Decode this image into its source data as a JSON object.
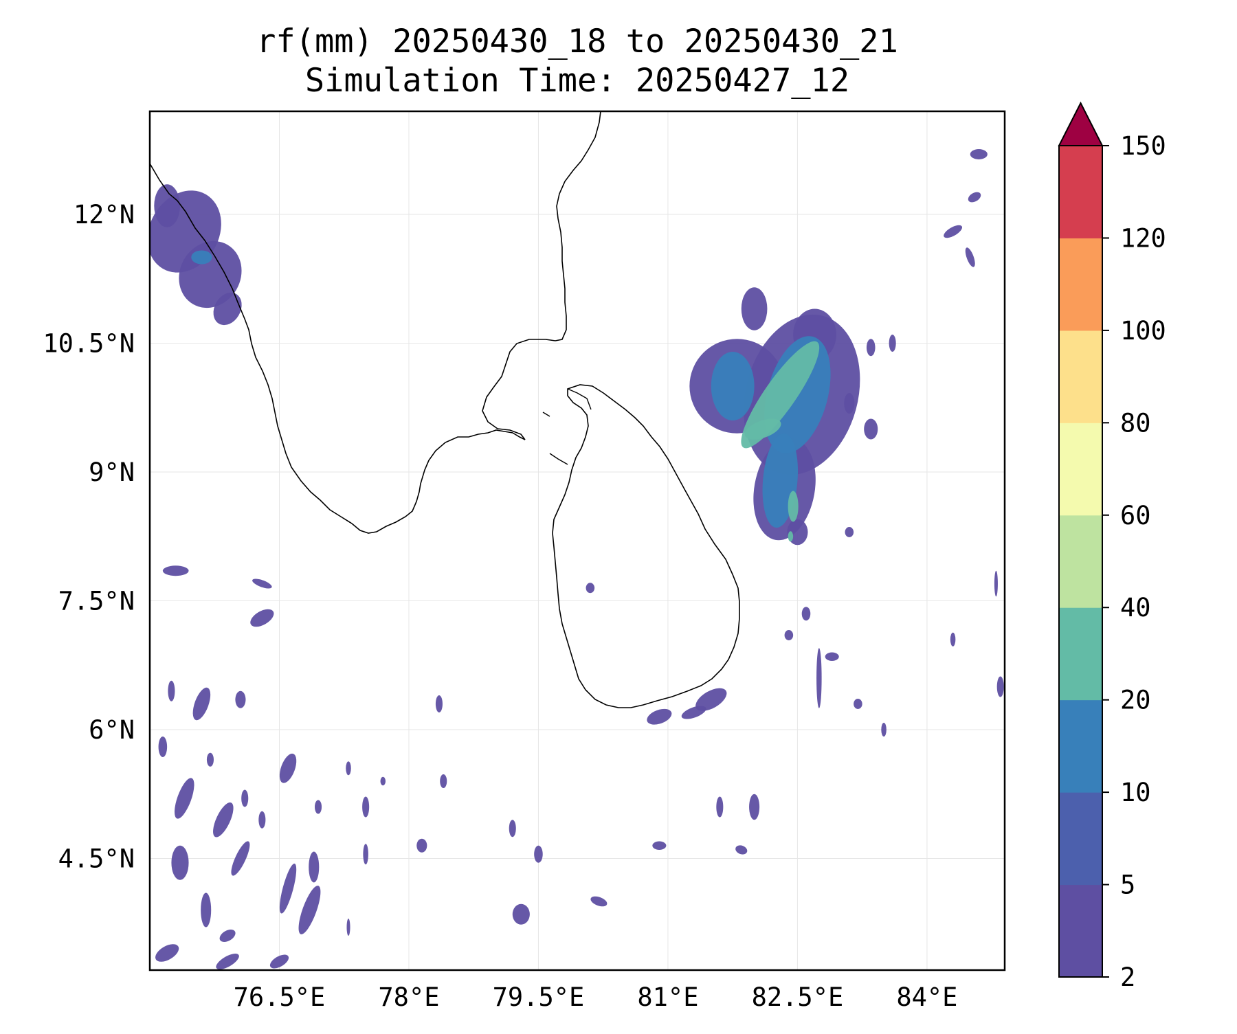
{
  "title": {
    "line1": "rf(mm) 20250430_18 to 20250430_21",
    "line2": "Simulation Time: 20250427_12"
  },
  "map": {
    "lon_range": [
      75.0,
      84.9
    ],
    "lat_range": [
      3.2,
      13.2
    ],
    "lon_ticks": [
      {
        "value": 76.5,
        "label": "76.5°E"
      },
      {
        "value": 78.0,
        "label": "78°E"
      },
      {
        "value": 79.5,
        "label": "79.5°E"
      },
      {
        "value": 81.0,
        "label": "81°E"
      },
      {
        "value": 82.5,
        "label": "82.5°E"
      },
      {
        "value": 84.0,
        "label": "84°E"
      }
    ],
    "lat_ticks": [
      {
        "value": 12.0,
        "label": "12°N"
      },
      {
        "value": 10.5,
        "label": "10.5°N"
      },
      {
        "value": 9.0,
        "label": "9°N"
      },
      {
        "value": 7.5,
        "label": "7.5°N"
      },
      {
        "value": 6.0,
        "label": "6°N"
      },
      {
        "value": 4.5,
        "label": "4.5°N"
      }
    ],
    "gridlines": true
  },
  "colorbar": {
    "extend": "max",
    "extend_color": "#9e0142",
    "bins": [
      {
        "min": 2,
        "max": 5,
        "color": "#5e4fa2"
      },
      {
        "min": 5,
        "max": 10,
        "color": "#4c60ad"
      },
      {
        "min": 10,
        "max": 20,
        "color": "#3880ba"
      },
      {
        "min": 20,
        "max": 40,
        "color": "#63bba6"
      },
      {
        "min": 40,
        "max": 60,
        "color": "#bee3a0"
      },
      {
        "min": 60,
        "max": 80,
        "color": "#f4faae"
      },
      {
        "min": 80,
        "max": 100,
        "color": "#fde08b"
      },
      {
        "min": 100,
        "max": 120,
        "color": "#fa9c59"
      },
      {
        "min": 120,
        "max": 150,
        "color": "#d53e4f"
      }
    ],
    "tick_labels": [
      "2",
      "5",
      "10",
      "20",
      "40",
      "60",
      "80",
      "100",
      "120",
      "150"
    ]
  },
  "rain_cells": [
    {
      "lon": 82.3,
      "lat": 9.9,
      "level": 20,
      "rx": 0.18,
      "ry": 0.75,
      "rot": 35
    },
    {
      "lon": 82.1,
      "lat": 9.5,
      "level": 20,
      "rx": 0.22,
      "ry": 0.1,
      "rot": -20
    },
    {
      "lon": 82.45,
      "lat": 8.6,
      "level": 20,
      "rx": 0.06,
      "ry": 0.18,
      "rot": 0
    },
    {
      "lon": 82.42,
      "lat": 8.25,
      "level": 20,
      "rx": 0.03,
      "ry": 0.06,
      "rot": 0
    },
    {
      "lon": 82.5,
      "lat": 9.9,
      "level": 10,
      "rx": 0.35,
      "ry": 0.7,
      "rot": 15
    },
    {
      "lon": 82.3,
      "lat": 8.9,
      "level": 10,
      "rx": 0.2,
      "ry": 0.55,
      "rot": 5
    },
    {
      "lon": 81.75,
      "lat": 10.0,
      "level": 10,
      "rx": 0.25,
      "ry": 0.4,
      "rot": 0
    },
    {
      "lon": 82.55,
      "lat": 9.9,
      "level": 2,
      "rx": 0.65,
      "ry": 0.95,
      "rot": 15
    },
    {
      "lon": 81.8,
      "lat": 10.0,
      "level": 2,
      "rx": 0.55,
      "ry": 0.55,
      "rot": 0
    },
    {
      "lon": 82.35,
      "lat": 8.8,
      "level": 2,
      "rx": 0.35,
      "ry": 0.6,
      "rot": 10
    },
    {
      "lon": 82.0,
      "lat": 10.9,
      "level": 2,
      "rx": 0.15,
      "ry": 0.25,
      "rot": 0
    },
    {
      "lon": 82.7,
      "lat": 10.6,
      "level": 2,
      "rx": 0.25,
      "ry": 0.3,
      "rot": 0
    },
    {
      "lon": 82.5,
      "lat": 8.3,
      "level": 2,
      "rx": 0.12,
      "ry": 0.15,
      "rot": 0
    },
    {
      "lon": 75.4,
      "lat": 11.8,
      "level": 2,
      "rx": 0.4,
      "ry": 0.5,
      "rot": 30
    },
    {
      "lon": 75.7,
      "lat": 11.3,
      "level": 2,
      "rx": 0.35,
      "ry": 0.4,
      "rot": 30
    },
    {
      "lon": 75.2,
      "lat": 12.1,
      "level": 2,
      "rx": 0.15,
      "ry": 0.25,
      "rot": 0
    },
    {
      "lon": 75.9,
      "lat": 10.9,
      "level": 2,
      "rx": 0.15,
      "ry": 0.2,
      "rot": 30
    },
    {
      "lon": 75.6,
      "lat": 11.5,
      "level": 10,
      "rx": 0.12,
      "ry": 0.08,
      "rot": 0
    },
    {
      "lon": 80.9,
      "lat": 6.15,
      "level": 2,
      "rx": 0.15,
      "ry": 0.08,
      "rot": -20
    },
    {
      "lon": 81.5,
      "lat": 6.35,
      "level": 2,
      "rx": 0.2,
      "ry": 0.1,
      "rot": -30
    },
    {
      "lon": 81.3,
      "lat": 6.2,
      "level": 2,
      "rx": 0.15,
      "ry": 0.06,
      "rot": -20
    },
    {
      "lon": 84.6,
      "lat": 12.7,
      "level": 2,
      "rx": 0.1,
      "ry": 0.06,
      "rot": 0
    },
    {
      "lon": 84.55,
      "lat": 12.2,
      "level": 2,
      "rx": 0.08,
      "ry": 0.05,
      "rot": -30
    },
    {
      "lon": 84.3,
      "lat": 11.8,
      "level": 2,
      "rx": 0.12,
      "ry": 0.05,
      "rot": -30
    },
    {
      "lon": 84.5,
      "lat": 11.5,
      "level": 2,
      "rx": 0.04,
      "ry": 0.12,
      "rot": -20
    },
    {
      "lon": 83.35,
      "lat": 10.45,
      "level": 2,
      "rx": 0.05,
      "ry": 0.1,
      "rot": 0
    },
    {
      "lon": 83.6,
      "lat": 10.5,
      "level": 2,
      "rx": 0.04,
      "ry": 0.1,
      "rot": 0
    },
    {
      "lon": 83.1,
      "lat": 9.8,
      "level": 2,
      "rx": 0.06,
      "ry": 0.12,
      "rot": 0
    },
    {
      "lon": 83.35,
      "lat": 9.5,
      "level": 2,
      "rx": 0.08,
      "ry": 0.12,
      "rot": 0
    },
    {
      "lon": 83.1,
      "lat": 8.3,
      "level": 2,
      "rx": 0.05,
      "ry": 0.06,
      "rot": 0
    },
    {
      "lon": 82.6,
      "lat": 7.35,
      "level": 2,
      "rx": 0.05,
      "ry": 0.08,
      "rot": 0
    },
    {
      "lon": 82.4,
      "lat": 7.1,
      "level": 2,
      "rx": 0.05,
      "ry": 0.06,
      "rot": 0
    },
    {
      "lon": 82.9,
      "lat": 6.85,
      "level": 2,
      "rx": 0.08,
      "ry": 0.05,
      "rot": 0
    },
    {
      "lon": 82.75,
      "lat": 6.6,
      "level": 2,
      "rx": 0.03,
      "ry": 0.35,
      "rot": 0
    },
    {
      "lon": 83.2,
      "lat": 6.3,
      "level": 2,
      "rx": 0.05,
      "ry": 0.06,
      "rot": 0
    },
    {
      "lon": 83.5,
      "lat": 6.0,
      "level": 2,
      "rx": 0.03,
      "ry": 0.08,
      "rot": 0
    },
    {
      "lon": 84.3,
      "lat": 7.05,
      "level": 2,
      "rx": 0.03,
      "ry": 0.08,
      "rot": 0
    },
    {
      "lon": 84.85,
      "lat": 6.5,
      "level": 2,
      "rx": 0.04,
      "ry": 0.12,
      "rot": 0
    },
    {
      "lon": 84.8,
      "lat": 7.7,
      "level": 2,
      "rx": 0.02,
      "ry": 0.15,
      "rot": 0
    },
    {
      "lon": 82.0,
      "lat": 5.1,
      "level": 2,
      "rx": 0.06,
      "ry": 0.15,
      "rot": 0
    },
    {
      "lon": 81.6,
      "lat": 5.1,
      "level": 2,
      "rx": 0.04,
      "ry": 0.12,
      "rot": 0
    },
    {
      "lon": 80.9,
      "lat": 4.65,
      "level": 2,
      "rx": 0.08,
      "ry": 0.05,
      "rot": 0
    },
    {
      "lon": 81.85,
      "lat": 4.6,
      "level": 2,
      "rx": 0.07,
      "ry": 0.05,
      "rot": 20
    },
    {
      "lon": 79.3,
      "lat": 3.85,
      "level": 2,
      "rx": 0.1,
      "ry": 0.12,
      "rot": 0
    },
    {
      "lon": 80.2,
      "lat": 4.0,
      "level": 2,
      "rx": 0.1,
      "ry": 0.05,
      "rot": 20
    },
    {
      "lon": 79.2,
      "lat": 4.85,
      "level": 2,
      "rx": 0.04,
      "ry": 0.1,
      "rot": 0
    },
    {
      "lon": 78.4,
      "lat": 5.4,
      "level": 2,
      "rx": 0.04,
      "ry": 0.08,
      "rot": 0
    },
    {
      "lon": 79.5,
      "lat": 4.55,
      "level": 2,
      "rx": 0.05,
      "ry": 0.1,
      "rot": 0
    },
    {
      "lon": 78.15,
      "lat": 4.65,
      "level": 2,
      "rx": 0.06,
      "ry": 0.08,
      "rot": 0
    },
    {
      "lon": 78.35,
      "lat": 6.3,
      "level": 2,
      "rx": 0.04,
      "ry": 0.1,
      "rot": 0
    },
    {
      "lon": 80.1,
      "lat": 7.65,
      "level": 2,
      "rx": 0.05,
      "ry": 0.06,
      "rot": 0
    },
    {
      "lon": 75.3,
      "lat": 7.85,
      "level": 2,
      "rx": 0.15,
      "ry": 0.06,
      "rot": 0
    },
    {
      "lon": 76.3,
      "lat": 7.3,
      "level": 2,
      "rx": 0.15,
      "ry": 0.08,
      "rot": -30
    },
    {
      "lon": 76.3,
      "lat": 7.7,
      "level": 2,
      "rx": 0.12,
      "ry": 0.04,
      "rot": 20
    },
    {
      "lon": 75.6,
      "lat": 6.3,
      "level": 2,
      "rx": 0.08,
      "ry": 0.2,
      "rot": 20
    },
    {
      "lon": 76.05,
      "lat": 6.35,
      "level": 2,
      "rx": 0.06,
      "ry": 0.1,
      "rot": 0
    },
    {
      "lon": 75.25,
      "lat": 6.45,
      "level": 2,
      "rx": 0.04,
      "ry": 0.12,
      "rot": 0
    },
    {
      "lon": 75.4,
      "lat": 5.2,
      "level": 2,
      "rx": 0.08,
      "ry": 0.25,
      "rot": 20
    },
    {
      "lon": 75.85,
      "lat": 4.95,
      "level": 2,
      "rx": 0.08,
      "ry": 0.22,
      "rot": 25
    },
    {
      "lon": 76.05,
      "lat": 4.5,
      "level": 2,
      "rx": 0.06,
      "ry": 0.22,
      "rot": 25
    },
    {
      "lon": 75.35,
      "lat": 4.45,
      "level": 2,
      "rx": 0.1,
      "ry": 0.2,
      "rot": 0
    },
    {
      "lon": 76.6,
      "lat": 5.55,
      "level": 2,
      "rx": 0.08,
      "ry": 0.18,
      "rot": 20
    },
    {
      "lon": 76.6,
      "lat": 4.15,
      "level": 2,
      "rx": 0.06,
      "ry": 0.3,
      "rot": 15
    },
    {
      "lon": 76.85,
      "lat": 3.9,
      "level": 2,
      "rx": 0.08,
      "ry": 0.3,
      "rot": 20
    },
    {
      "lon": 76.9,
      "lat": 4.4,
      "level": 2,
      "rx": 0.06,
      "ry": 0.18,
      "rot": 0
    },
    {
      "lon": 75.65,
      "lat": 3.9,
      "level": 2,
      "rx": 0.06,
      "ry": 0.2,
      "rot": 0
    },
    {
      "lon": 75.9,
      "lat": 3.6,
      "level": 2,
      "rx": 0.1,
      "ry": 0.06,
      "rot": -30
    },
    {
      "lon": 75.2,
      "lat": 3.4,
      "level": 2,
      "rx": 0.15,
      "ry": 0.08,
      "rot": -30
    },
    {
      "lon": 75.9,
      "lat": 3.3,
      "level": 2,
      "rx": 0.15,
      "ry": 0.06,
      "rot": -30
    },
    {
      "lon": 76.5,
      "lat": 3.3,
      "level": 2,
      "rx": 0.12,
      "ry": 0.06,
      "rot": -30
    },
    {
      "lon": 75.15,
      "lat": 5.8,
      "level": 2,
      "rx": 0.05,
      "ry": 0.12,
      "rot": 0
    },
    {
      "lon": 76.3,
      "lat": 4.95,
      "level": 2,
      "rx": 0.04,
      "ry": 0.1,
      "rot": 0
    },
    {
      "lon": 77.5,
      "lat": 5.1,
      "level": 2,
      "rx": 0.04,
      "ry": 0.12,
      "rot": 0
    },
    {
      "lon": 77.3,
      "lat": 5.55,
      "level": 2,
      "rx": 0.03,
      "ry": 0.08,
      "rot": 0
    },
    {
      "lon": 77.7,
      "lat": 5.4,
      "level": 2,
      "rx": 0.03,
      "ry": 0.05,
      "rot": 0
    },
    {
      "lon": 76.95,
      "lat": 5.1,
      "level": 2,
      "rx": 0.04,
      "ry": 0.08,
      "rot": 0
    },
    {
      "lon": 77.5,
      "lat": 4.55,
      "level": 2,
      "rx": 0.03,
      "ry": 0.12,
      "rot": 0
    },
    {
      "lon": 77.3,
      "lat": 3.7,
      "level": 2,
      "rx": 0.02,
      "ry": 0.1,
      "rot": 0
    },
    {
      "lon": 76.1,
      "lat": 5.2,
      "level": 2,
      "rx": 0.04,
      "ry": 0.1,
      "rot": 0
    },
    {
      "lon": 75.7,
      "lat": 5.65,
      "level": 2,
      "rx": 0.04,
      "ry": 0.08,
      "rot": 0
    }
  ]
}
